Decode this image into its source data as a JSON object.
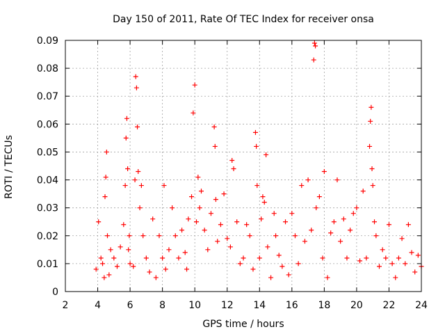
{
  "chart_data": {
    "type": "scatter",
    "title": "Day 150 of 2011, Rate Of TEC Index for receiver onsa",
    "xlabel": "GPS time / hours",
    "ylabel": "ROTI / TECUs",
    "xlim": [
      2,
      24
    ],
    "ylim": [
      0,
      0.09
    ],
    "xticks": [
      "2",
      "4",
      "6",
      "8",
      "10",
      "12",
      "14",
      "16",
      "18",
      "20",
      "22",
      "24"
    ],
    "yticks": [
      "0",
      "0.01",
      "0.02",
      "0.03",
      "0.04",
      "0.05",
      "0.06",
      "0.07",
      "0.08",
      "0.09"
    ],
    "grid": true,
    "marker": "+",
    "color": "#ff0000",
    "series": [
      {
        "x": [
          3.9,
          4.05,
          4.2,
          4.3,
          4.4,
          4.45,
          4.5,
          4.55,
          4.6,
          4.7,
          4.8,
          5.0,
          5.2,
          5.4,
          5.6,
          5.7,
          5.75,
          5.8,
          5.85,
          5.9,
          5.95,
          6.0,
          6.2,
          6.3,
          6.35,
          6.4,
          6.45,
          6.5,
          6.6,
          6.7,
          6.8,
          7.0,
          7.2,
          7.4,
          7.6,
          7.8,
          8.0,
          8.1,
          8.2,
          8.4,
          8.6,
          8.8,
          9.0,
          9.2,
          9.4,
          9.5,
          9.6,
          9.8,
          9.9,
          10.0,
          10.1,
          10.2,
          10.3,
          10.4,
          10.6,
          10.8,
          11.0,
          11.2,
          11.25,
          11.3,
          11.4,
          11.6,
          11.8,
          12.0,
          12.2,
          12.3,
          12.4,
          12.6,
          12.8,
          13.0,
          13.2,
          13.4,
          13.6,
          13.75,
          13.8,
          13.85,
          14.0,
          14.1,
          14.2,
          14.3,
          14.4,
          14.5,
          14.7,
          14.9,
          15.0,
          15.2,
          15.4,
          15.6,
          15.8,
          16.0,
          16.2,
          16.4,
          16.6,
          16.8,
          17.0,
          17.2,
          17.35,
          17.4,
          17.45,
          17.5,
          17.7,
          17.9,
          18.0,
          18.2,
          18.4,
          18.6,
          18.8,
          19.0,
          19.2,
          19.4,
          19.6,
          19.8,
          20.0,
          20.2,
          20.4,
          20.6,
          20.8,
          20.85,
          20.9,
          20.95,
          21.0,
          21.1,
          21.2,
          21.4,
          21.6,
          21.8,
          22.0,
          22.2,
          22.4,
          22.6,
          22.8,
          23.0,
          23.2,
          23.4,
          23.6,
          23.8,
          24.0
        ],
        "y": [
          0.008,
          0.025,
          0.012,
          0.01,
          0.005,
          0.034,
          0.041,
          0.05,
          0.02,
          0.006,
          0.015,
          0.012,
          0.009,
          0.016,
          0.024,
          0.038,
          0.055,
          0.062,
          0.044,
          0.015,
          0.02,
          0.01,
          0.009,
          0.04,
          0.077,
          0.073,
          0.059,
          0.043,
          0.03,
          0.038,
          0.02,
          0.012,
          0.007,
          0.026,
          0.005,
          0.02,
          0.012,
          0.038,
          0.008,
          0.015,
          0.03,
          0.02,
          0.012,
          0.022,
          0.014,
          0.008,
          0.026,
          0.034,
          0.064,
          0.074,
          0.025,
          0.041,
          0.03,
          0.036,
          0.022,
          0.015,
          0.028,
          0.059,
          0.052,
          0.033,
          0.018,
          0.024,
          0.035,
          0.019,
          0.016,
          0.047,
          0.044,
          0.025,
          0.01,
          0.012,
          0.024,
          0.02,
          0.008,
          0.057,
          0.052,
          0.038,
          0.012,
          0.026,
          0.034,
          0.032,
          0.049,
          0.016,
          0.005,
          0.028,
          0.02,
          0.013,
          0.009,
          0.025,
          0.006,
          0.028,
          0.02,
          0.01,
          0.038,
          0.018,
          0.04,
          0.022,
          0.083,
          0.089,
          0.088,
          0.03,
          0.034,
          0.012,
          0.043,
          0.005,
          0.021,
          0.025,
          0.04,
          0.018,
          0.026,
          0.012,
          0.022,
          0.028,
          0.03,
          0.011,
          0.036,
          0.012,
          0.052,
          0.061,
          0.066,
          0.044,
          0.038,
          0.025,
          0.02,
          0.009,
          0.015,
          0.012,
          0.024,
          0.01,
          0.005,
          0.012,
          0.019,
          0.01,
          0.024,
          0.014,
          0.007,
          0.013,
          0.009
        ]
      }
    ]
  }
}
